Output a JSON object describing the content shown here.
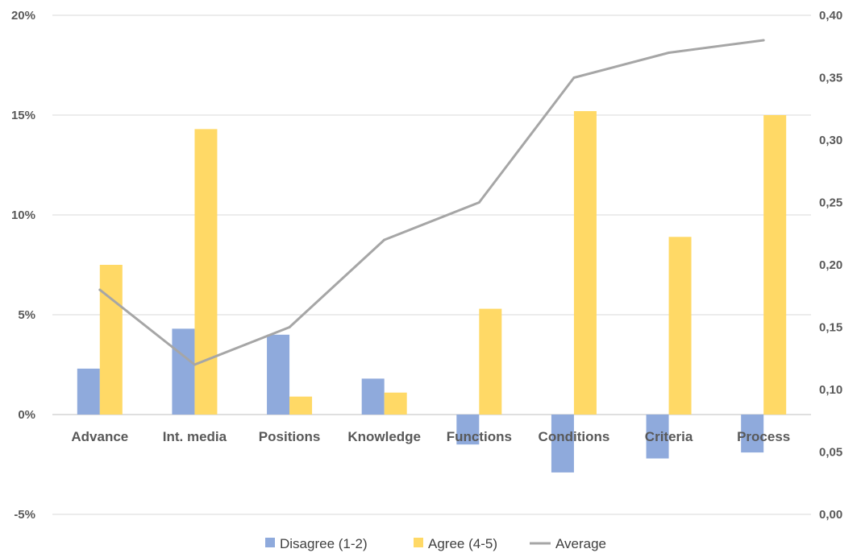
{
  "chart_data": {
    "type": "bar",
    "categories": [
      "Advance",
      "Int. media",
      "Positions",
      "Knowledge",
      "Functions",
      "Conditions",
      "Criteria",
      "Process"
    ],
    "series": [
      {
        "name": "Disagree (1-2)",
        "kind": "bar",
        "axis": "left",
        "color": "#8faadc",
        "values": [
          2.3,
          4.3,
          4.0,
          1.8,
          -1.5,
          -2.9,
          -2.2,
          -1.9
        ]
      },
      {
        "name": "Agree (4-5)",
        "kind": "bar",
        "axis": "left",
        "color": "#ffd966",
        "values": [
          7.5,
          14.3,
          0.9,
          1.1,
          5.3,
          15.2,
          8.9,
          15.0
        ]
      },
      {
        "name": "Average",
        "kind": "line",
        "axis": "right",
        "color": "#a6a6a6",
        "values": [
          0.18,
          0.12,
          0.15,
          0.22,
          0.25,
          0.35,
          0.37,
          0.38
        ]
      }
    ],
    "y_left": {
      "min": -5,
      "max": 20,
      "step": 5,
      "tick_labels": [
        "-5%",
        "0%",
        "5%",
        "10%",
        "15%",
        "20%"
      ]
    },
    "y_right": {
      "min": 0,
      "max": 0.4,
      "step": 0.05,
      "tick_labels": [
        "0,00",
        "0,05",
        "0,10",
        "0,15",
        "0,20",
        "0,25",
        "0,30",
        "0,35",
        "0,40"
      ]
    },
    "grid": true,
    "legend_position": "bottom"
  }
}
